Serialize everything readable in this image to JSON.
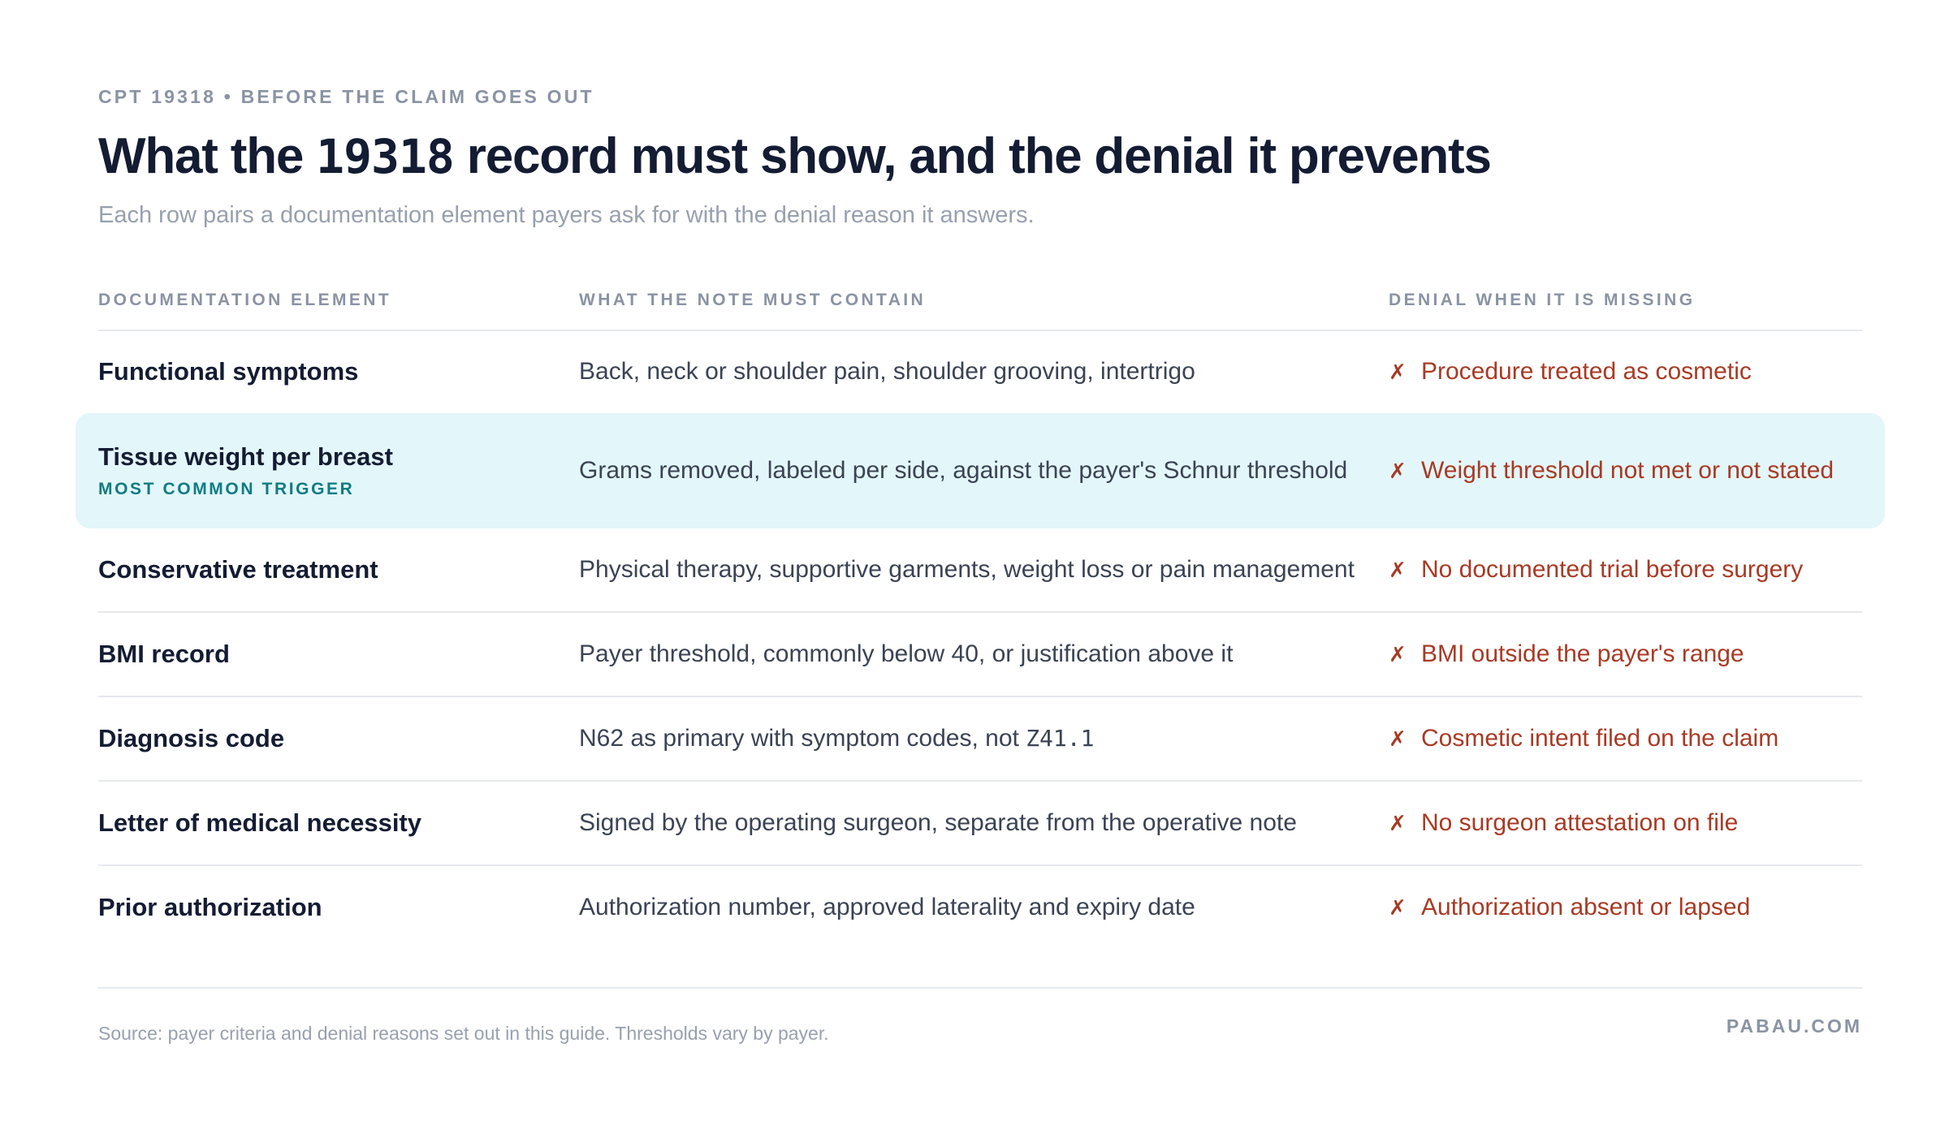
{
  "header": {
    "eyebrow": "CPT 19318 • BEFORE THE CLAIM GOES OUT",
    "title_pre": "What the ",
    "title_code": "19318",
    "title_post": " record must show, and the denial it prevents",
    "subtitle": "Each row pairs a documentation element payers ask for with the denial reason it answers."
  },
  "table": {
    "columns": [
      "DOCUMENTATION ELEMENT",
      "WHAT THE NOTE MUST CONTAIN",
      "DENIAL WHEN IT IS MISSING"
    ],
    "denial_marker": "✗",
    "rows": [
      {
        "element": "Functional symptoms",
        "tag": "",
        "contain": "Back, neck or shoulder pain, shoulder grooving, intertrigo",
        "denial": "Procedure treated as cosmetic"
      },
      {
        "element": "Tissue weight per breast",
        "tag": "MOST COMMON TRIGGER",
        "contain": "Grams removed, labeled per side, against the payer's Schnur threshold",
        "denial": "Weight threshold not met or not stated"
      },
      {
        "element": "Conservative treatment",
        "tag": "",
        "contain": "Physical therapy, supportive garments, weight loss or pain management",
        "denial": "No documented trial before surgery"
      },
      {
        "element": "BMI record",
        "tag": "",
        "contain": "Payer threshold, commonly below 40, or justification above it",
        "denial": "BMI outside the payer's range"
      },
      {
        "element": "Diagnosis code",
        "tag": "",
        "contain_pre": "N62 as primary with symptom codes, not ",
        "contain_code": "Z41.1",
        "denial": "Cosmetic intent filed on the claim"
      },
      {
        "element": "Letter of medical necessity",
        "tag": "",
        "contain": "Signed by the operating surgeon, separate from the operative note",
        "denial": "No surgeon attestation on file"
      },
      {
        "element": "Prior authorization",
        "tag": "",
        "contain": "Authorization number, approved laterality and expiry date",
        "denial": "Authorization absent or lapsed"
      }
    ]
  },
  "footer": {
    "source": "Source: payer criteria and denial reasons set out in this guide. Thresholds vary by payer.",
    "brand": "PABAU.COM"
  },
  "colors": {
    "title": "#141c33",
    "muted": "#8a93a3",
    "denial": "#a83a24",
    "highlight_bg": "#e3f6fa",
    "tag": "#0f7c84"
  }
}
